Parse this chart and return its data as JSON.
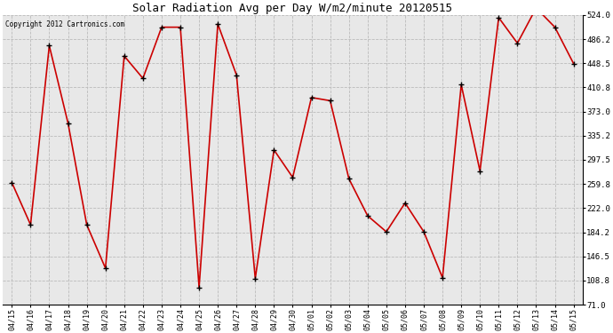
{
  "title": "Solar Radiation Avg per Day W/m2/minute 20120515",
  "copyright": "Copyright 2012 Cartronics.com",
  "labels": [
    "04/15",
    "04/16",
    "04/17",
    "04/18",
    "04/19",
    "04/20",
    "04/21",
    "04/22",
    "04/23",
    "04/24",
    "04/25",
    "04/26",
    "04/27",
    "04/28",
    "04/29",
    "04/30",
    "05/01",
    "05/02",
    "05/03",
    "05/04",
    "05/05",
    "05/06",
    "05/07",
    "05/08",
    "05/09",
    "05/10",
    "05/11",
    "05/12",
    "05/13",
    "05/14",
    "05/15"
  ],
  "values": [
    262,
    196,
    476,
    355,
    196,
    128,
    460,
    425,
    505,
    505,
    98,
    510,
    430,
    112,
    313,
    270,
    395,
    390,
    268,
    210,
    185,
    230,
    185,
    113,
    415,
    280,
    520,
    480,
    535,
    505,
    448
  ],
  "line_color": "#cc0000",
  "marker_color": "#000000",
  "bg_color": "#ffffff",
  "plot_bg_color": "#e8e8e8",
  "grid_color": "#bbbbbb",
  "y_min": 71.0,
  "y_max": 524.0,
  "yticks": [
    71.0,
    108.8,
    146.5,
    184.2,
    222.0,
    259.8,
    297.5,
    335.2,
    373.0,
    410.8,
    448.5,
    486.2,
    524.0
  ]
}
